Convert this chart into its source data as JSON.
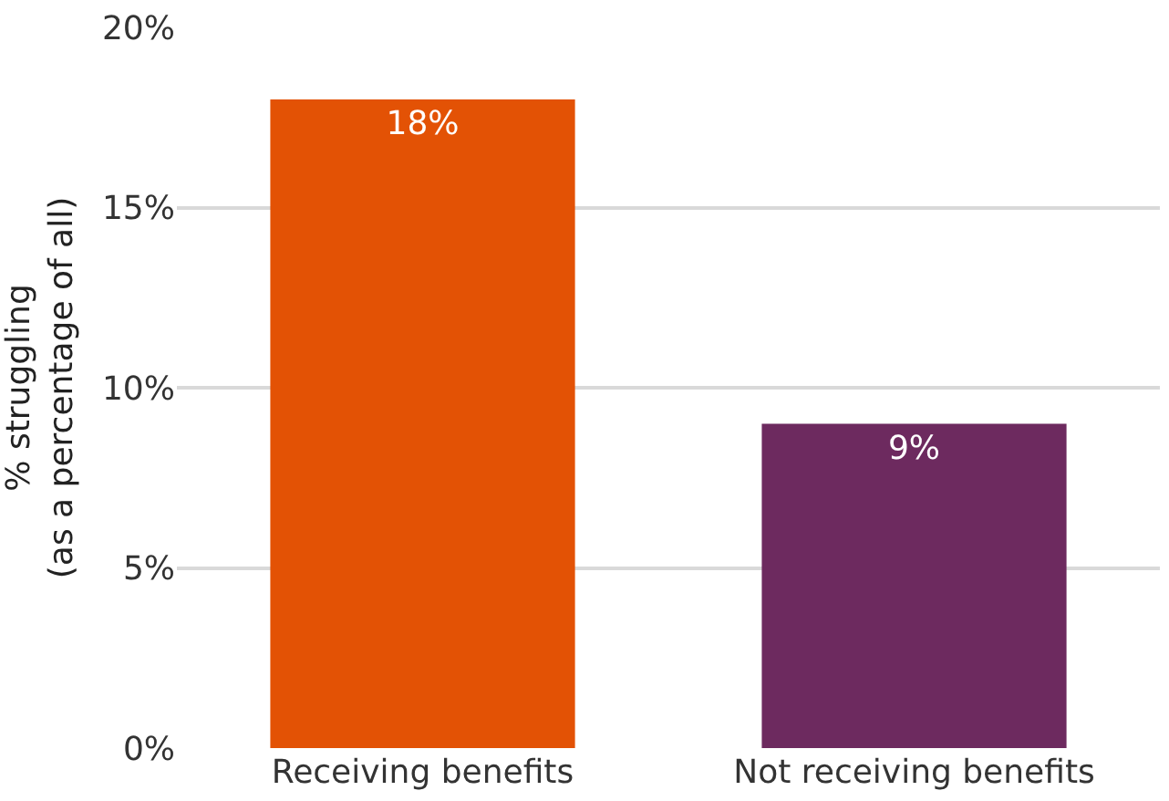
{
  "chart_data": {
    "type": "bar",
    "ylabel": "% struggling\n(as a percentage of all)",
    "categories": [
      "Receiving benefits",
      "Not receiving benefits"
    ],
    "values": [
      18,
      9
    ],
    "colors": [
      "#e35205",
      "#6d2a5f"
    ],
    "value_labels": [
      "18%",
      "9%"
    ],
    "ylim": [
      0,
      20
    ],
    "yticks": [
      {
        "value": 0,
        "label": "0%"
      },
      {
        "value": 5,
        "label": "5%"
      },
      {
        "value": 10,
        "label": "10%"
      },
      {
        "value": 15,
        "label": "15%"
      },
      {
        "value": 20,
        "label": "20%"
      }
    ],
    "grid": "y",
    "legend": false
  }
}
